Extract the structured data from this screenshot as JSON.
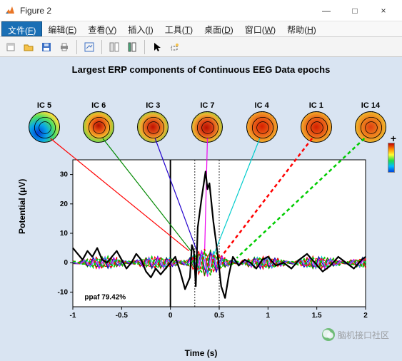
{
  "window": {
    "title": "Figure 2",
    "minimize": "—",
    "maximize": "□",
    "close": "×"
  },
  "menubar": {
    "items": [
      {
        "label": "文件",
        "accel": "F",
        "active": true
      },
      {
        "label": "编辑",
        "accel": "E"
      },
      {
        "label": "查看",
        "accel": "V"
      },
      {
        "label": "插入",
        "accel": "I"
      },
      {
        "label": "工具",
        "accel": "T"
      },
      {
        "label": "桌面",
        "accel": "D"
      },
      {
        "label": "窗口",
        "accel": "W"
      },
      {
        "label": "帮助",
        "accel": "H"
      }
    ]
  },
  "toolbar": {
    "icons": [
      "new-figure",
      "open",
      "save",
      "print",
      "|",
      "edit-plot",
      "|",
      "linked-axes",
      "insert-colorbar",
      "|",
      "arrow-cursor",
      "brush"
    ]
  },
  "plot": {
    "title": "Largest ERP components of Continuous EEG Data epochs",
    "xlabel": "Time (s)",
    "ylabel": "Potential (μV)",
    "xlim": [
      -1,
      2
    ],
    "ylim": [
      -15,
      35
    ],
    "xticks": [
      -1,
      -0.5,
      0,
      0.5,
      1,
      1.5,
      2
    ],
    "yticks": [
      -10,
      0,
      10,
      20,
      30
    ],
    "vlines": [
      0,
      0.25,
      0.5
    ],
    "vline_style": [
      "solid",
      "dashed",
      "dashed"
    ],
    "background": "#d9e4f2",
    "plot_bg": "#ffffff",
    "grid_color": "#000000",
    "ppaf_text": "ppaf 79.42%",
    "ppaf_x": -0.88,
    "ppaf_y": -12.5
  },
  "topomaps": {
    "colorbar": {
      "colors": [
        "#c00000",
        "#ff8800",
        "#ffff33",
        "#22dd44",
        "#00bbff",
        "#0044dd"
      ]
    },
    "plus_indicator": "+",
    "items": [
      {
        "label": "IC 5",
        "gradient": "radial-gradient(circle at 30% 70%, #003cd6 0%, #08a7e8 30%, #50e060 55%, #f5e040 75%, #e06a18 92%)",
        "line_color": "#ff0000",
        "line_style": "solid",
        "chart_x": 0.19
      },
      {
        "label": "IC 6",
        "gradient": "radial-gradient(circle at 50% 45%, #b01000 0%, #e85012 25%, #f4b028 50%, #80d848 72%, #18c4e8 92%)",
        "line_color": "#008800",
        "line_style": "solid",
        "chart_x": 0.22
      },
      {
        "label": "IC 3",
        "gradient": "radial-gradient(circle at 50% 50%, #c01000 0%, #e05018 30%, #f0b030 58%, #66d64a 82%, #20c8e8 95%)",
        "line_color": "#2200cc",
        "line_style": "solid",
        "chart_x": 0.28
      },
      {
        "label": "IC 7",
        "gradient": "radial-gradient(circle at 48% 52%, #b81000 0%, #e04818 32%, #f0b030 60%, #66d64a 82%, #22c6ea 95%)",
        "line_color": "#ee00ee",
        "line_style": "solid",
        "chart_x": 0.35
      },
      {
        "label": "IC 4",
        "gradient": "radial-gradient(circle at 50% 48%, #d82000 0%, #ea6018 40%, #f4b830 76%, #a6de48 92%)",
        "line_color": "#00cccc",
        "line_style": "solid",
        "chart_x": 0.44
      },
      {
        "label": "IC 1",
        "gradient": "radial-gradient(circle at 50% 50%, #d42000 0%, #ea6018 42%, #f4b22c 74%, #b0dc48 92%)",
        "line_color": "#ff0000",
        "line_style": "dashed",
        "chart_x": 0.52
      },
      {
        "label": "IC 14",
        "gradient": "radial-gradient(circle at 50% 50%, #e04010 0%, #f09020 52%, #eacc38 82%, #a8da48 95%)",
        "line_color": "#00cc00",
        "line_style": "dashed",
        "chart_x": 0.68
      }
    ]
  },
  "main_trace": {
    "color": "#000000",
    "width": 2.2,
    "data": [
      [
        -1.0,
        5
      ],
      [
        -0.95,
        3
      ],
      [
        -0.9,
        1
      ],
      [
        -0.85,
        4
      ],
      [
        -0.8,
        2
      ],
      [
        -0.75,
        5
      ],
      [
        -0.7,
        1
      ],
      [
        -0.65,
        0
      ],
      [
        -0.6,
        2
      ],
      [
        -0.55,
        4
      ],
      [
        -0.5,
        1
      ],
      [
        -0.45,
        -2
      ],
      [
        -0.4,
        0
      ],
      [
        -0.35,
        3
      ],
      [
        -0.3,
        1
      ],
      [
        -0.25,
        -3
      ],
      [
        -0.2,
        -5
      ],
      [
        -0.15,
        -2
      ],
      [
        -0.1,
        -4
      ],
      [
        -0.05,
        -2
      ],
      [
        0.0,
        0
      ],
      [
        0.05,
        2
      ],
      [
        0.1,
        -3
      ],
      [
        0.15,
        -9
      ],
      [
        0.2,
        -5
      ],
      [
        0.22,
        6
      ],
      [
        0.24,
        4
      ],
      [
        0.26,
        -8
      ],
      [
        0.28,
        12
      ],
      [
        0.32,
        22
      ],
      [
        0.36,
        31
      ],
      [
        0.38,
        25
      ],
      [
        0.4,
        27
      ],
      [
        0.44,
        14
      ],
      [
        0.48,
        4
      ],
      [
        0.52,
        -8
      ],
      [
        0.56,
        -12
      ],
      [
        0.6,
        -4
      ],
      [
        0.64,
        2
      ],
      [
        0.7,
        -1
      ],
      [
        0.76,
        1
      ],
      [
        0.82,
        0
      ],
      [
        0.88,
        -2
      ],
      [
        0.94,
        1
      ],
      [
        1.0,
        2
      ],
      [
        1.08,
        -1
      ],
      [
        1.16,
        0
      ],
      [
        1.24,
        -2
      ],
      [
        1.32,
        1
      ],
      [
        1.4,
        3
      ],
      [
        1.48,
        0
      ],
      [
        1.56,
        -3
      ],
      [
        1.64,
        -1
      ],
      [
        1.72,
        2
      ],
      [
        1.8,
        0
      ],
      [
        1.88,
        -2
      ],
      [
        1.96,
        1
      ],
      [
        2.0,
        2
      ]
    ]
  },
  "ic_traces": {
    "amplitude": 2.5,
    "count": 7
  },
  "watermark": {
    "text": "脑机接口社区"
  }
}
